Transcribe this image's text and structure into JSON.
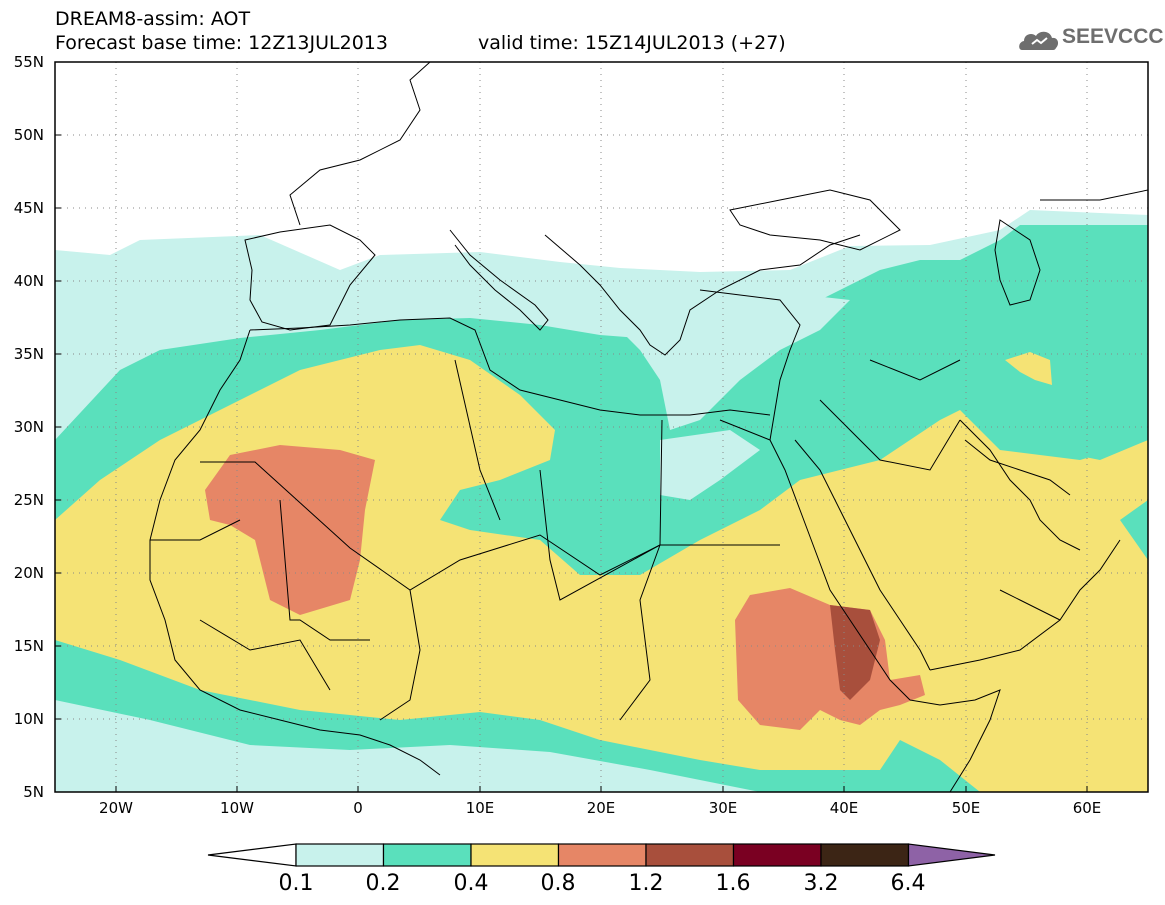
{
  "header": {
    "line1": "DREAM8-assim: AOT",
    "line2": "Forecast base time: 12Z13JUL2013",
    "line3": "valid time: 15Z14JUL2013 (+27)"
  },
  "logo": {
    "text": "SEEVCCC",
    "icon": "cloud-icon"
  },
  "map": {
    "lon_range": [
      -25,
      65
    ],
    "lat_range": [
      5,
      55
    ],
    "y_ticks": [
      "55N",
      "50N",
      "45N",
      "40N",
      "35N",
      "30N",
      "25N",
      "20N",
      "15N",
      "10N",
      "5N"
    ],
    "x_ticks": [
      "20W",
      "10W",
      "0",
      "10E",
      "20E",
      "30E",
      "40E",
      "50E",
      "60E"
    ],
    "grid": "dotted"
  },
  "colorbar": {
    "labels": [
      "0.1",
      "0.2",
      "0.4",
      "0.8",
      "1.2",
      "1.6",
      "3.2",
      "6.4"
    ],
    "colors": [
      "#ffffff",
      "#c8f2ec",
      "#5ae0bc",
      "#f5e375",
      "#e68666",
      "#a84f3c",
      "#7a0022",
      "#3c2515",
      "#8e62a6"
    ]
  }
}
